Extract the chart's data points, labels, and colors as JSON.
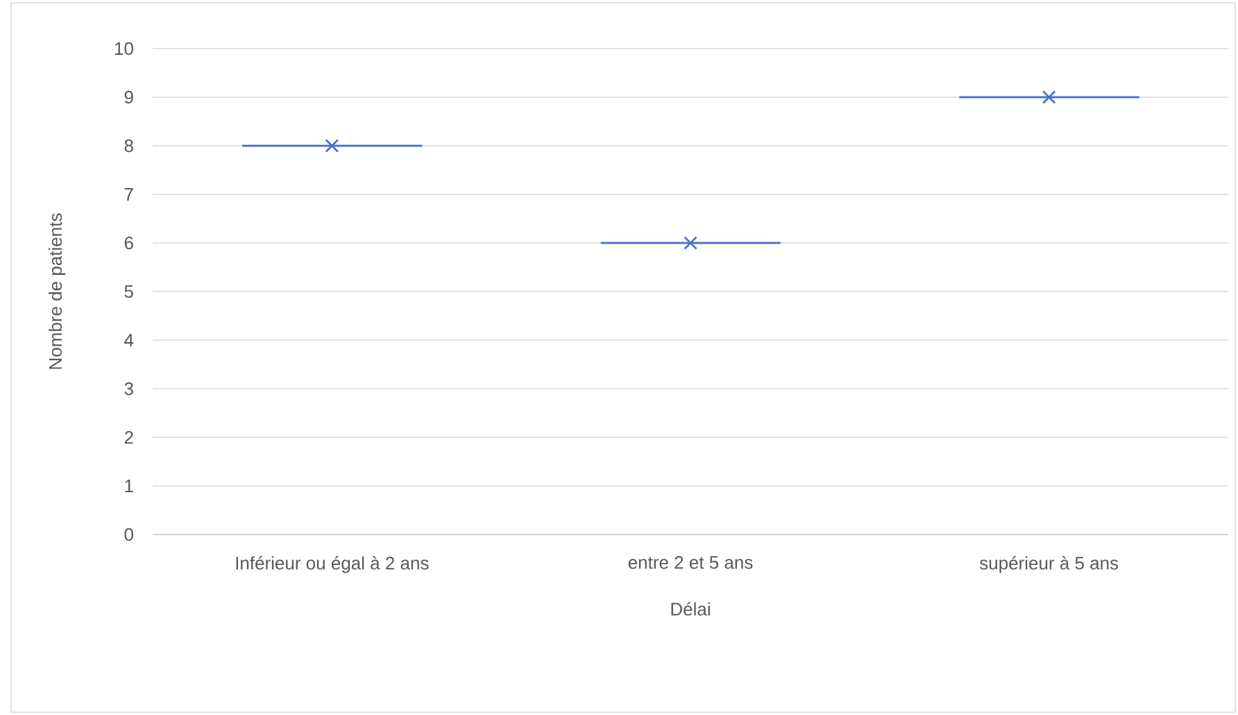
{
  "chart_data": {
    "type": "box",
    "xlabel": "Délai",
    "ylabel": "Nombre de patients",
    "categories": [
      "Inférieur ou égal à 2 ans",
      "entre 2 et 5 ans",
      "supérieur à 5 ans"
    ],
    "series": [
      {
        "color": "#4472c4",
        "boxes": [
          {
            "low": 8,
            "q1": 8,
            "median": 8,
            "q3": 8,
            "high": 8,
            "mean": 8
          },
          {
            "low": 6,
            "q1": 6,
            "median": 6,
            "q3": 6,
            "high": 6,
            "mean": 6
          },
          {
            "low": 9,
            "q1": 9,
            "median": 9,
            "q3": 9,
            "high": 9,
            "mean": 9
          }
        ]
      }
    ],
    "ylim": [
      0,
      10
    ],
    "yticks": [
      0,
      1,
      2,
      3,
      4,
      5,
      6,
      7,
      8,
      9,
      10
    ],
    "grid": "y",
    "marker": "cross"
  }
}
